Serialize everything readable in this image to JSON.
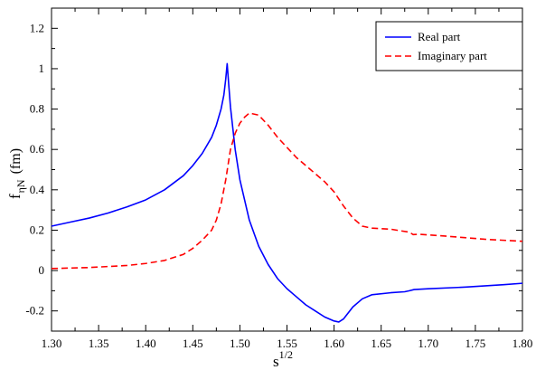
{
  "chart_data": {
    "type": "line",
    "xlabel": {
      "base": "s",
      "sup": "1/2"
    },
    "ylabel": {
      "base": "f",
      "sub": "ηN",
      "unit": "(fm)"
    },
    "xlim": [
      1.3,
      1.8
    ],
    "ylim": [
      -0.3,
      1.3
    ],
    "x_ticks": [
      1.3,
      1.35,
      1.4,
      1.45,
      1.5,
      1.55,
      1.6,
      1.65,
      1.7,
      1.75,
      1.8
    ],
    "x_tick_labels": [
      "1.30",
      "1.35",
      "1.40",
      "1.45",
      "1.50",
      "1.55",
      "1.60",
      "1.65",
      "1.70",
      "1.75",
      "1.80"
    ],
    "y_ticks": [
      -0.2,
      0,
      0.2,
      0.4,
      0.6,
      0.8,
      1,
      1.2
    ],
    "y_tick_labels": [
      "-0.2",
      "0",
      "0.2",
      "0.4",
      "0.6",
      "0.8",
      "1",
      "1.2"
    ],
    "legend_position": "top-right",
    "grid": false,
    "series": [
      {
        "name": "Real part",
        "color": "#0000ff",
        "dash": "solid",
        "points": [
          [
            1.3,
            0.22
          ],
          [
            1.32,
            0.24
          ],
          [
            1.34,
            0.26
          ],
          [
            1.36,
            0.285
          ],
          [
            1.38,
            0.315
          ],
          [
            1.4,
            0.35
          ],
          [
            1.42,
            0.4
          ],
          [
            1.44,
            0.47
          ],
          [
            1.45,
            0.52
          ],
          [
            1.46,
            0.58
          ],
          [
            1.47,
            0.66
          ],
          [
            1.475,
            0.72
          ],
          [
            1.48,
            0.8
          ],
          [
            1.483,
            0.87
          ],
          [
            1.485,
            0.95
          ],
          [
            1.4865,
            1.025
          ],
          [
            1.488,
            0.93
          ],
          [
            1.49,
            0.81
          ],
          [
            1.495,
            0.6
          ],
          [
            1.5,
            0.45
          ],
          [
            1.51,
            0.25
          ],
          [
            1.52,
            0.12
          ],
          [
            1.53,
            0.03
          ],
          [
            1.54,
            -0.04
          ],
          [
            1.55,
            -0.09
          ],
          [
            1.56,
            -0.13
          ],
          [
            1.57,
            -0.17
          ],
          [
            1.58,
            -0.2
          ],
          [
            1.59,
            -0.23
          ],
          [
            1.6,
            -0.25
          ],
          [
            1.605,
            -0.255
          ],
          [
            1.61,
            -0.24
          ],
          [
            1.62,
            -0.18
          ],
          [
            1.63,
            -0.14
          ],
          [
            1.64,
            -0.12
          ],
          [
            1.66,
            -0.11
          ],
          [
            1.675,
            -0.105
          ],
          [
            1.68,
            -0.1
          ],
          [
            1.685,
            -0.094
          ],
          [
            1.7,
            -0.09
          ],
          [
            1.74,
            -0.082
          ],
          [
            1.78,
            -0.07
          ],
          [
            1.8,
            -0.063
          ]
        ]
      },
      {
        "name": "Imaginary part",
        "color": "#ff0000",
        "dash": "dashed",
        "points": [
          [
            1.3,
            0.01
          ],
          [
            1.34,
            0.015
          ],
          [
            1.38,
            0.025
          ],
          [
            1.4,
            0.035
          ],
          [
            1.42,
            0.05
          ],
          [
            1.44,
            0.08
          ],
          [
            1.45,
            0.11
          ],
          [
            1.46,
            0.15
          ],
          [
            1.47,
            0.2
          ],
          [
            1.475,
            0.25
          ],
          [
            1.48,
            0.33
          ],
          [
            1.485,
            0.45
          ],
          [
            1.49,
            0.6
          ],
          [
            1.495,
            0.68
          ],
          [
            1.5,
            0.73
          ],
          [
            1.505,
            0.76
          ],
          [
            1.51,
            0.78
          ],
          [
            1.52,
            0.77
          ],
          [
            1.53,
            0.72
          ],
          [
            1.54,
            0.66
          ],
          [
            1.55,
            0.61
          ],
          [
            1.56,
            0.56
          ],
          [
            1.57,
            0.52
          ],
          [
            1.58,
            0.48
          ],
          [
            1.59,
            0.44
          ],
          [
            1.6,
            0.39
          ],
          [
            1.61,
            0.32
          ],
          [
            1.62,
            0.26
          ],
          [
            1.63,
            0.22
          ],
          [
            1.64,
            0.21
          ],
          [
            1.66,
            0.205
          ],
          [
            1.68,
            0.19
          ],
          [
            1.684,
            0.178
          ],
          [
            1.69,
            0.18
          ],
          [
            1.72,
            0.17
          ],
          [
            1.76,
            0.155
          ],
          [
            1.8,
            0.145
          ]
        ]
      }
    ]
  }
}
